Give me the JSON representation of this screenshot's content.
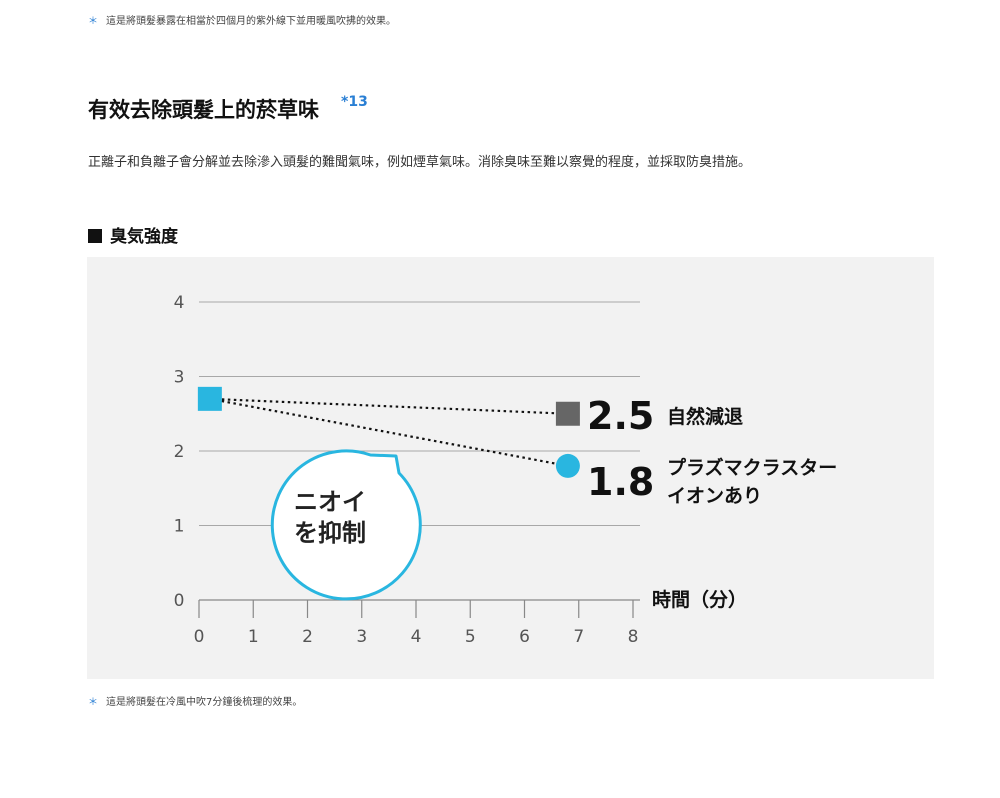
{
  "notes": {
    "asterisk": "＊",
    "top": "這是將頭髮暴露在相當於四個月的紫外線下並用暖風吹拂的效果。",
    "bottom": "這是將頭髮在冷風中吹7分鐘後梳理的效果。"
  },
  "section": {
    "heading": "有效去除頭髮上的菸草味",
    "heading_ref": "*13",
    "description": "正離子和負離子會分解並去除滲入頭髮的難聞氣味，例如煙草氣味。消除臭味至難以察覺的程度，並採取防臭措施。"
  },
  "chart_data": {
    "type": "line",
    "title": "臭気強度",
    "xlabel": "時間（分）",
    "ylabel": "",
    "xlim": [
      0,
      8
    ],
    "ylim": [
      0,
      4
    ],
    "x_ticks": [
      "0",
      "1",
      "2",
      "3",
      "4",
      "5",
      "6",
      "7",
      "8"
    ],
    "y_ticks": [
      "0",
      "1",
      "2",
      "3",
      "4"
    ],
    "grid": "horizontal",
    "series": [
      {
        "name": "自然減退",
        "x": [
          0.2,
          6.8
        ],
        "y": [
          2.7,
          2.5
        ],
        "end_label": "2.5",
        "marker": "square",
        "color": "#666666",
        "start_color": "#29b6e0"
      },
      {
        "name_lines": [
          "プラズマクラスター",
          "イオンあり"
        ],
        "x": [
          0.2,
          6.8
        ],
        "y": [
          2.7,
          1.8
        ],
        "end_label": "1.8",
        "marker": "circle",
        "color": "#29b6e0"
      }
    ],
    "callout": {
      "lines": [
        "ニオイ",
        "を抑制"
      ],
      "color": "#29b6e0"
    }
  }
}
